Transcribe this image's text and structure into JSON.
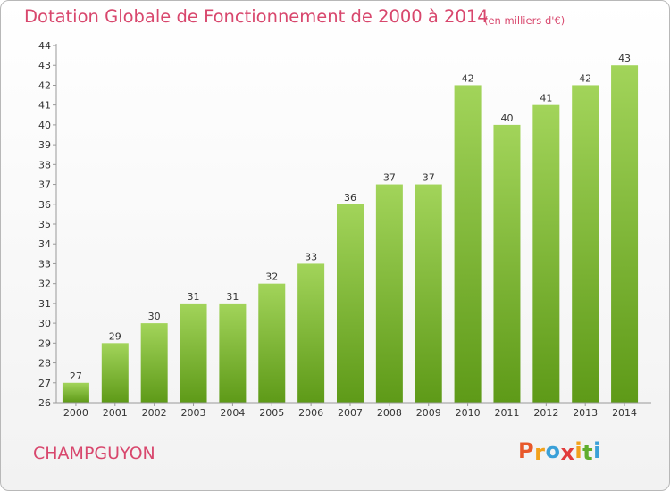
{
  "header": {
    "title": "Dotation Globale de Fonctionnement de 2000 à 2014",
    "unit": "(en milliers d'€)"
  },
  "footer": {
    "commune": "CHAMPGUYON",
    "logo": [
      "P",
      "r",
      "o",
      "x",
      "i",
      "t",
      "i"
    ]
  },
  "colors": {
    "bar_top": "#a2d45a",
    "bar_bottom": "#5e9a18",
    "title": "#d8476d",
    "logo": [
      "#e8582a",
      "#f2a11b",
      "#3aa0d8",
      "#e23c3c",
      "#f2a11b",
      "#5fae2e",
      "#3aa0d8"
    ]
  },
  "chart_data": {
    "type": "bar",
    "title": "Dotation Globale de Fonctionnement de 2000 à 2014",
    "subtitle": "(en milliers d'€)",
    "categories": [
      "2000",
      "2001",
      "2002",
      "2003",
      "2004",
      "2005",
      "2006",
      "2007",
      "2008",
      "2009",
      "2010",
      "2011",
      "2012",
      "2013",
      "2014"
    ],
    "values": [
      27,
      29,
      30,
      31,
      31,
      32,
      33,
      36,
      37,
      37,
      42,
      40,
      41,
      42,
      43
    ],
    "ylim": [
      26,
      44
    ],
    "yticks": [
      26,
      27,
      28,
      29,
      30,
      31,
      32,
      33,
      34,
      35,
      36,
      37,
      38,
      39,
      40,
      41,
      42,
      43,
      44
    ],
    "grid": false,
    "legend": "none"
  }
}
